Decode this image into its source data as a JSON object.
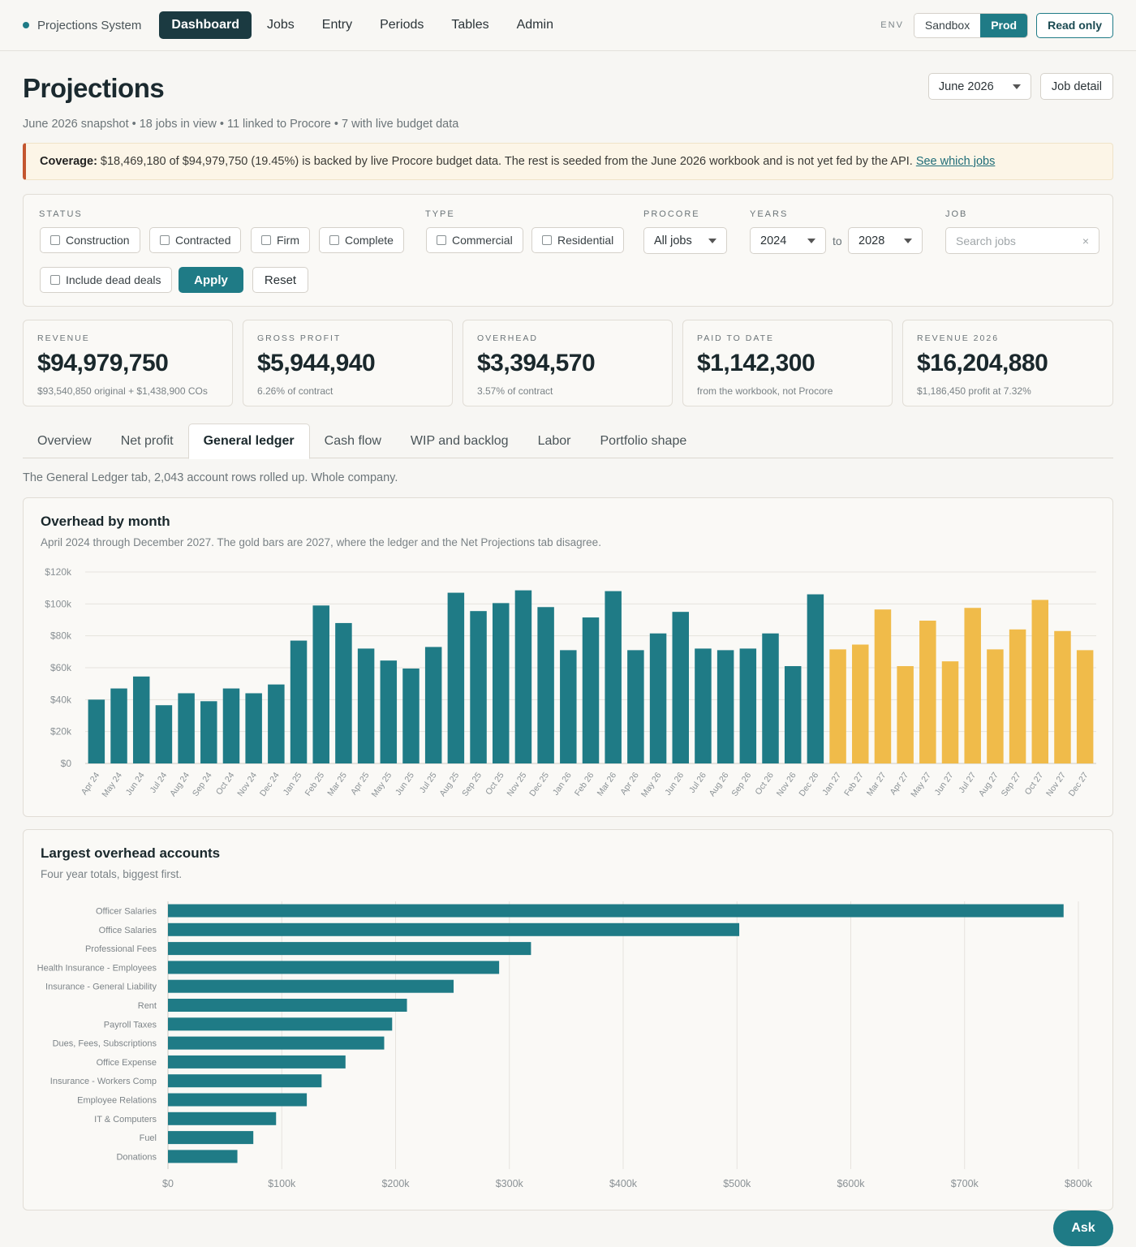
{
  "nav": {
    "brand": "Projections System",
    "links": [
      "Dashboard",
      "Jobs",
      "Entry",
      "Periods",
      "Tables",
      "Admin"
    ],
    "env_label": "ENV",
    "env_options": [
      "Sandbox",
      "Prod"
    ],
    "read_only": "Read only"
  },
  "header": {
    "title": "Projections",
    "subtitle": "June 2026 snapshot • 18 jobs in view • 11 linked to Procore • 7 with live budget data",
    "period": "June 2026",
    "job_detail": "Job detail"
  },
  "coverage": {
    "label": "Coverage:",
    "text": "$18,469,180 of $94,979,750 (19.45%) is backed by live Procore budget data. The rest is seeded from the June 2026 workbook and is not yet fed by the API.",
    "link": "See which jobs"
  },
  "filters": {
    "status_label": "STATUS",
    "status_options": [
      "Construction",
      "Contracted",
      "Firm",
      "Complete"
    ],
    "dead_deals": "Include dead deals",
    "apply": "Apply",
    "reset": "Reset",
    "type_label": "TYPE",
    "type_options": [
      "Commercial",
      "Residential"
    ],
    "procore_label": "PROCORE",
    "procore_value": "All jobs",
    "years_label": "YEARS",
    "year_from": "2024",
    "to": "to",
    "year_to": "2028",
    "job_label": "JOB",
    "job_placeholder": "Search jobs",
    "clear": "×"
  },
  "kpis": [
    {
      "label": "REVENUE",
      "value": "$94,979,750",
      "note": "$93,540,850 original + $1,438,900 COs"
    },
    {
      "label": "GROSS PROFIT",
      "value": "$5,944,940",
      "note": "6.26% of contract"
    },
    {
      "label": "OVERHEAD",
      "value": "$3,394,570",
      "note": "3.57% of contract"
    },
    {
      "label": "PAID TO DATE",
      "value": "$1,142,300",
      "note": "from the workbook, not Procore"
    },
    {
      "label": "REVENUE 2026",
      "value": "$16,204,880",
      "note": "$1,186,450 profit at 7.32%"
    }
  ],
  "tabs": [
    "Overview",
    "Net profit",
    "General ledger",
    "Cash flow",
    "WIP and backlog",
    "Labor",
    "Portfolio shape"
  ],
  "active_tab": 2,
  "tab_description": "The General Ledger tab, 2,043 account rows rolled up. Whole company.",
  "ask": "Ask",
  "colors": {
    "teal": "#1f7b86",
    "gold": "#f0bb4a"
  },
  "chart_data": [
    {
      "type": "bar",
      "title": "Overhead by month",
      "subtitle": "April 2024 through December 2027. The gold bars are 2027, where the ledger and the Net Projections tab disagree.",
      "y_ticks": [
        "$0",
        "$20k",
        "$40k",
        "$60k",
        "$80k",
        "$100k",
        "$120k"
      ],
      "ylim": [
        0,
        120000
      ],
      "grid": true,
      "categories": [
        "Apr 24",
        "May 24",
        "Jun 24",
        "Jul 24",
        "Aug 24",
        "Sep 24",
        "Oct 24",
        "Nov 24",
        "Dec 24",
        "Jan 25",
        "Feb 25",
        "Mar 25",
        "Apr 25",
        "May 25",
        "Jun 25",
        "Jul 25",
        "Aug 25",
        "Sep 25",
        "Oct 25",
        "Nov 25",
        "Dec 25",
        "Jan 26",
        "Feb 26",
        "Mar 26",
        "Apr 26",
        "May 26",
        "Jun 26",
        "Jul 26",
        "Aug 26",
        "Sep 26",
        "Oct 26",
        "Nov 26",
        "Dec 26",
        "Jan 27",
        "Feb 27",
        "Mar 27",
        "Apr 27",
        "May 27",
        "Jun 27",
        "Jul 27",
        "Aug 27",
        "Sep 27",
        "Oct 27",
        "Nov 27",
        "Dec 27"
      ],
      "values": [
        40000,
        47000,
        54500,
        36500,
        44000,
        39000,
        47000,
        44000,
        49500,
        77000,
        99000,
        88000,
        72000,
        64500,
        59500,
        73000,
        107000,
        95500,
        100500,
        108500,
        98000,
        71000,
        91500,
        108000,
        71000,
        81500,
        95000,
        72000,
        71000,
        72000,
        81500,
        61000,
        106000,
        71500,
        74500,
        96500,
        61000,
        89500,
        64000,
        97500,
        71500,
        84000,
        102500,
        83000,
        71000
      ],
      "highlight_from_index": 33
    },
    {
      "type": "bar",
      "orientation": "horizontal",
      "title": "Largest overhead accounts",
      "subtitle": "Four year totals, biggest first.",
      "x_ticks": [
        "$0",
        "$100k",
        "$200k",
        "$300k",
        "$400k",
        "$500k",
        "$600k",
        "$700k",
        "$800k"
      ],
      "xlim": [
        0,
        800000
      ],
      "grid": true,
      "categories": [
        "Officer Salaries",
        "Office Salaries",
        "Professional Fees",
        "Health Insurance - Employees",
        "Insurance - General Liability",
        "Rent",
        "Payroll Taxes",
        "Dues, Fees, Subscriptions",
        "Office Expense",
        "Insurance - Workers Comp",
        "Employee Relations",
        "IT & Computers",
        "Fuel",
        "Donations"
      ],
      "values": [
        787000,
        502000,
        319000,
        291000,
        251000,
        210000,
        197000,
        190000,
        156000,
        135000,
        122000,
        95000,
        75000,
        61000
      ]
    }
  ]
}
